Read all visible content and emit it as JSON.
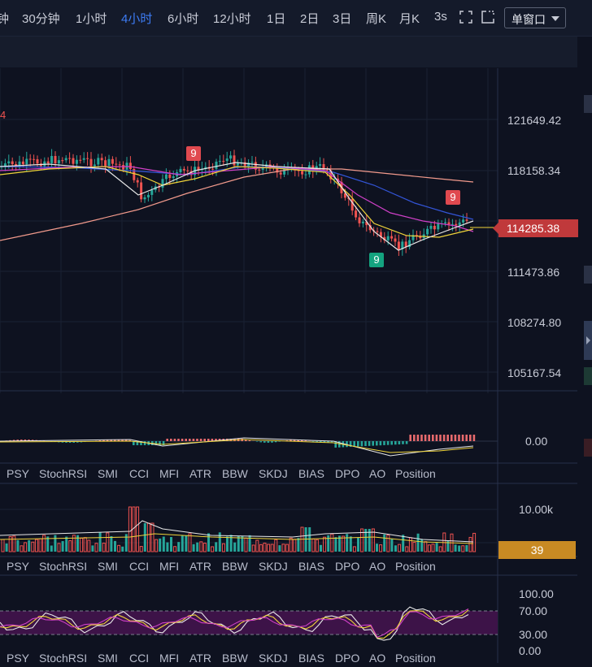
{
  "toolbar": {
    "timeframes": [
      {
        "label": "钟",
        "active": false
      },
      {
        "label": "30分钟",
        "active": false
      },
      {
        "label": "1小时",
        "active": false
      },
      {
        "label": "4小时",
        "active": true
      },
      {
        "label": "6小时",
        "active": false
      },
      {
        "label": "12小时",
        "active": false
      },
      {
        "label": "1日",
        "active": false
      },
      {
        "label": "2日",
        "active": false
      },
      {
        "label": "3日",
        "active": false
      },
      {
        "label": "周K",
        "active": false
      },
      {
        "label": "月K",
        "active": false
      },
      {
        "label": "3s",
        "active": false
      }
    ],
    "window_mode": "单窗口",
    "icons": [
      "fullscreen-icon",
      "screenshot-icon"
    ]
  },
  "main_chart": {
    "price_axis": [
      "121649.42",
      "118158.34",
      "111473.86",
      "108274.80",
      "105167.54"
    ],
    "current_price": "114285.38",
    "partial_label": "4",
    "td_markers": [
      "9",
      "9",
      "9"
    ],
    "colors": {
      "up": "#26a69a",
      "down": "#ef5350",
      "ma_white": "#e8e8e8",
      "ma_yellow": "#f0d43a",
      "ma_magenta": "#d040c8",
      "ma_blue": "#3355d8",
      "ma_salmon": "#f29a8c"
    }
  },
  "indicator_tabs": [
    "PSY",
    "StochRSI",
    "SMI",
    "CCI",
    "MFI",
    "ATR",
    "BBW",
    "SKDJ",
    "BIAS",
    "DPO",
    "AO",
    "Position"
  ],
  "macd_panel": {
    "axis_labels": [
      "0.00"
    ]
  },
  "volume_panel": {
    "axis_labels": [
      "10.00k"
    ],
    "current_value": "39"
  },
  "oscillator_panel": {
    "axis_labels": [
      "100.00",
      "70.00",
      "30.00",
      "0.00"
    ]
  }
}
